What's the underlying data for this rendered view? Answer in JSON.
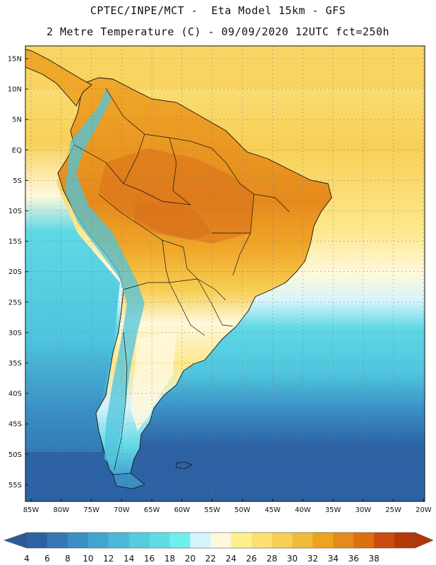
{
  "header": {
    "line1": "CPTEC/INPE/MCT -  Eta Model 15km - GFS",
    "line2": "2 Metre Temperature (C) - 09/09/2020 12UTC fct=250h"
  },
  "map": {
    "lat_labels": [
      "15N",
      "10N",
      "5N",
      "EQ",
      "5S",
      "10S",
      "15S",
      "20S",
      "25S",
      "30S",
      "35S",
      "40S",
      "45S",
      "50S",
      "55S"
    ],
    "lon_labels": [
      "85W",
      "80W",
      "75W",
      "70W",
      "65W",
      "60W",
      "55W",
      "50W",
      "45W",
      "40W",
      "35W",
      "30W",
      "25W",
      "20W"
    ],
    "colors": {
      "ocean_deep": "#2c62a3",
      "ocean_mid": "#3a8ec4",
      "ocean_shallow": "#4fc4dd",
      "ocean_light": "#5fd8e6",
      "pale": "#d5f4fb",
      "cream": "#fff8dc",
      "yellow": "#fde78a",
      "warm": "#f7cf55",
      "orange": "#f0a82a",
      "hot": "#e58a1c",
      "very_hot": "#d9701a",
      "coast": "#111111"
    }
  },
  "colorbar": {
    "labels": [
      "4",
      "6",
      "8",
      "10",
      "12",
      "14",
      "16",
      "18",
      "20",
      "22",
      "24",
      "26",
      "28",
      "30",
      "32",
      "34",
      "36",
      "38"
    ],
    "colors": [
      "#2c62a3",
      "#3677b3",
      "#3a8ec4",
      "#42a4cf",
      "#4bb9d9",
      "#55ccdf",
      "#5fdde6",
      "#6ff0f0",
      "#d5f4fb",
      "#fff8dc",
      "#fff08f",
      "#fde070",
      "#f7cf55",
      "#f0bb3a",
      "#eda31d",
      "#e58a1c",
      "#dc6f10",
      "#c94c0c",
      "#b3380a"
    ],
    "left_arrow_color": "#2a5a98",
    "right_arrow_color": "#b2350a"
  }
}
